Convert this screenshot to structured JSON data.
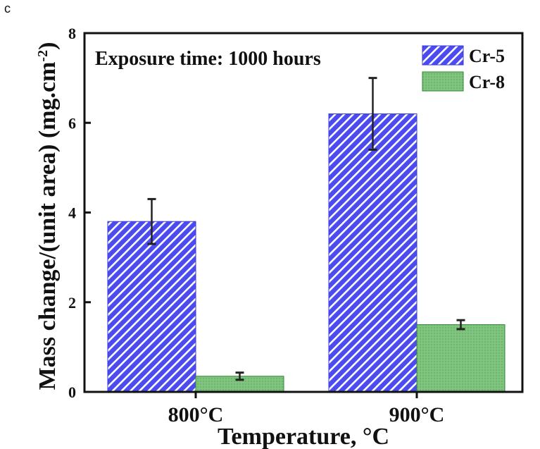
{
  "panel_label": "c",
  "chart_data": {
    "type": "bar",
    "categories": [
      "800°C",
      "900°C"
    ],
    "series": [
      {
        "name": "Cr-5",
        "values": [
          3.8,
          6.2
        ],
        "errors": [
          0.5,
          0.8
        ],
        "color": "#4b4bf0",
        "pattern": "diagonal-hatch"
      },
      {
        "name": "Cr-8",
        "values": [
          0.35,
          1.5
        ],
        "errors": [
          0.08,
          0.1
        ],
        "color": "#7cc37c",
        "pattern": "fine-dots"
      }
    ],
    "xlabel": "Temperature, °C",
    "ylabel": "Mass change/(unit area) (mg.cm",
    "ylabel_superscript": "-2",
    "ylabel_close": ")",
    "ylim": [
      0,
      8
    ],
    "yticks": [
      0,
      2,
      4,
      6,
      8
    ],
    "annotation": "Exposure time: 1000 hours",
    "legend_position": "top-right"
  }
}
